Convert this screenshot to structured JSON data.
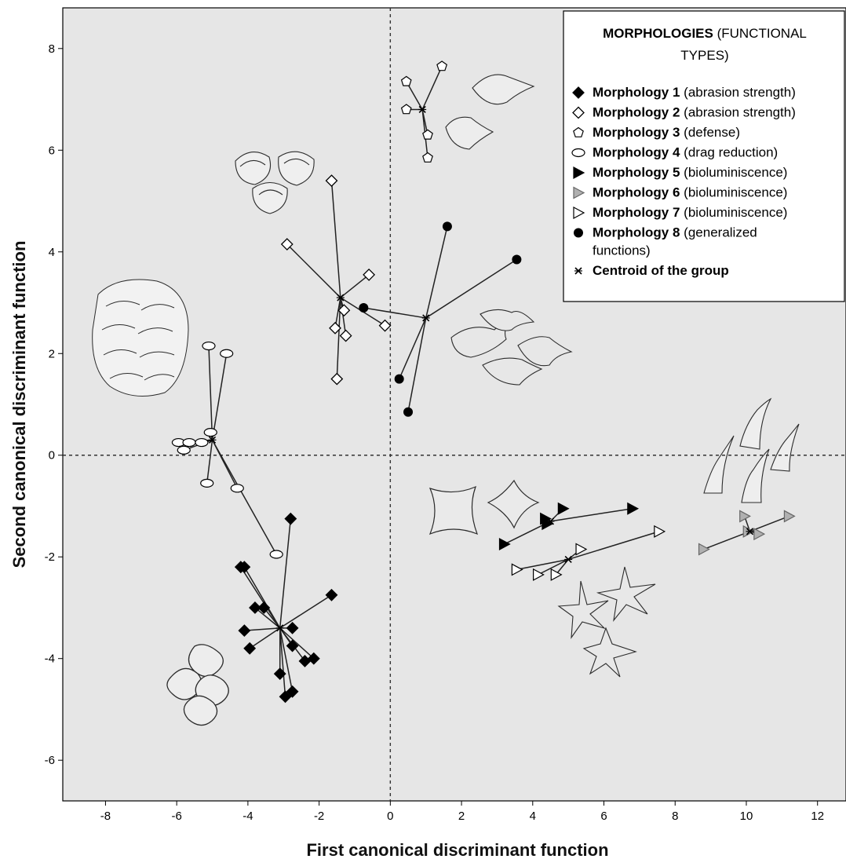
{
  "chart_data": {
    "type": "scatter",
    "xlabel": "First canonical discriminant function",
    "ylabel": "Second canonical discriminant function",
    "xlim": [
      -9.2,
      12.8
    ],
    "ylim": [
      -6.8,
      8.8
    ],
    "xticks": [
      -8,
      -6,
      -4,
      -2,
      0,
      2,
      4,
      6,
      8,
      10,
      12
    ],
    "yticks": [
      -6,
      -4,
      -2,
      0,
      2,
      4,
      6,
      8
    ],
    "reference_lines": {
      "x": 0,
      "y": 0,
      "style": "dashed"
    },
    "legend": {
      "position": "top-right",
      "title_bold": "MORPHOLOGIES",
      "title_rest": " (FUNCTIONAL",
      "title_line2": "TYPES)",
      "centroid_label": "Centroid of the group"
    },
    "series": [
      {
        "name": "Morphology 1",
        "function": "(abrasion strength)",
        "marker": "diamond-filled",
        "centroid": [
          -3.1,
          -3.4
        ],
        "points": [
          [
            -4.2,
            -2.2
          ],
          [
            -4.1,
            -2.2
          ],
          [
            -2.8,
            -1.25
          ],
          [
            -1.65,
            -2.75
          ],
          [
            -3.8,
            -3.0
          ],
          [
            -3.55,
            -3.0
          ],
          [
            -4.1,
            -3.45
          ],
          [
            -2.75,
            -3.4
          ],
          [
            -3.95,
            -3.8
          ],
          [
            -2.75,
            -3.75
          ],
          [
            -2.4,
            -4.05
          ],
          [
            -2.15,
            -4.0
          ],
          [
            -3.1,
            -4.3
          ],
          [
            -2.95,
            -4.75
          ],
          [
            -2.75,
            -4.65
          ]
        ]
      },
      {
        "name": "Morphology 2",
        "function": "(abrasion strength)",
        "marker": "diamond-open",
        "centroid": [
          -1.4,
          3.1
        ],
        "points": [
          [
            -1.65,
            5.4
          ],
          [
            -2.9,
            4.15
          ],
          [
            -0.6,
            3.55
          ],
          [
            -1.3,
            2.85
          ],
          [
            -1.55,
            2.5
          ],
          [
            -1.25,
            2.35
          ],
          [
            -0.15,
            2.55
          ],
          [
            -1.5,
            1.5
          ]
        ]
      },
      {
        "name": "Morphology 3",
        "function": "(defense)",
        "marker": "pentagon-open",
        "centroid": [
          0.9,
          6.8
        ],
        "points": [
          [
            0.45,
            7.35
          ],
          [
            1.45,
            7.65
          ],
          [
            0.45,
            6.8
          ],
          [
            1.05,
            6.3
          ],
          [
            1.05,
            5.85
          ]
        ]
      },
      {
        "name": "Morphology 4",
        "function": "(drag reduction)",
        "marker": "ellipse-open",
        "centroid": [
          -5.0,
          0.3
        ],
        "points": [
          [
            -5.1,
            2.15
          ],
          [
            -4.6,
            2.0
          ],
          [
            -5.05,
            0.45
          ],
          [
            -5.95,
            0.25
          ],
          [
            -5.65,
            0.25
          ],
          [
            -5.8,
            0.1
          ],
          [
            -5.3,
            0.25
          ],
          [
            -5.15,
            -0.55
          ],
          [
            -4.3,
            -0.65
          ],
          [
            -3.2,
            -1.95
          ]
        ]
      },
      {
        "name": "Morphology 5",
        "function": "(bioluminiscence)",
        "marker": "triangle-right-filled",
        "centroid": [
          4.5,
          -1.3
        ],
        "points": [
          [
            3.2,
            -1.75
          ],
          [
            6.8,
            -1.05
          ],
          [
            4.85,
            -1.05
          ],
          [
            4.35,
            -1.25
          ],
          [
            4.4,
            -1.35
          ]
        ]
      },
      {
        "name": "Morphology 6",
        "function": "(bioluminiscence)",
        "marker": "triangle-right-grey",
        "centroid": [
          10.1,
          -1.5
        ],
        "points": [
          [
            9.95,
            -1.2
          ],
          [
            10.05,
            -1.5
          ],
          [
            10.35,
            -1.55
          ],
          [
            11.2,
            -1.2
          ],
          [
            8.8,
            -1.85
          ]
        ]
      },
      {
        "name": "Morphology 7",
        "function": "(bioluminiscence)",
        "marker": "triangle-right-open",
        "centroid": [
          5.0,
          -2.05
        ],
        "points": [
          [
            3.55,
            -2.25
          ],
          [
            4.15,
            -2.35
          ],
          [
            4.65,
            -2.35
          ],
          [
            5.35,
            -1.85
          ],
          [
            7.55,
            -1.5
          ]
        ]
      },
      {
        "name": "Morphology 8",
        "function_line1": "(generalized",
        "function_line2": "functions)",
        "marker": "circle-filled",
        "centroid": [
          1.0,
          2.7
        ],
        "points": [
          [
            -0.75,
            2.9
          ],
          [
            1.6,
            4.5
          ],
          [
            3.55,
            3.85
          ],
          [
            0.25,
            1.5
          ],
          [
            0.5,
            0.85
          ]
        ]
      }
    ]
  }
}
